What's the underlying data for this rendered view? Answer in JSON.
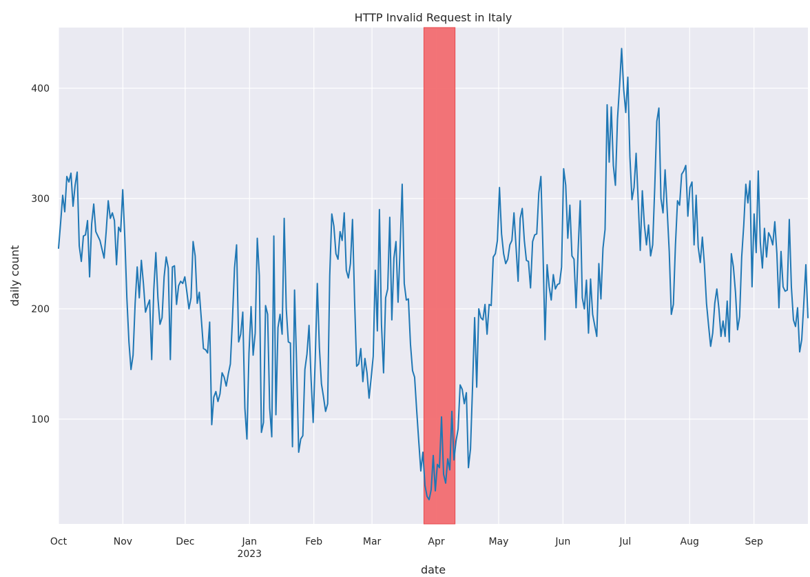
{
  "chart_data": {
    "type": "line",
    "title": "HTTP Invalid Request in Italy",
    "xlabel": "date",
    "ylabel": "daily count",
    "start_date": "2022-10-01",
    "end_date": "2023-09-27",
    "ylim": [
      5,
      455
    ],
    "y_ticks": [
      100,
      200,
      300,
      400
    ],
    "x_ticks": [
      {
        "date": "2022-10-01",
        "label": "Oct",
        "sublabel": ""
      },
      {
        "date": "2022-11-01",
        "label": "Nov",
        "sublabel": ""
      },
      {
        "date": "2022-12-01",
        "label": "Dec",
        "sublabel": ""
      },
      {
        "date": "2023-01-01",
        "label": "Jan",
        "sublabel": "2023"
      },
      {
        "date": "2023-02-01",
        "label": "Feb",
        "sublabel": ""
      },
      {
        "date": "2023-03-01",
        "label": "Mar",
        "sublabel": ""
      },
      {
        "date": "2023-04-01",
        "label": "Apr",
        "sublabel": ""
      },
      {
        "date": "2023-05-01",
        "label": "May",
        "sublabel": ""
      },
      {
        "date": "2023-06-01",
        "label": "Jun",
        "sublabel": ""
      },
      {
        "date": "2023-07-01",
        "label": "Jul",
        "sublabel": ""
      },
      {
        "date": "2023-08-01",
        "label": "Aug",
        "sublabel": ""
      },
      {
        "date": "2023-09-01",
        "label": "Sep",
        "sublabel": ""
      }
    ],
    "highlight": {
      "start": "2023-03-26",
      "end": "2023-04-10",
      "color": "#f26d70"
    },
    "series": [
      {
        "name": "daily count",
        "color": "#1f77b4",
        "values": [
          255,
          278,
          303,
          288,
          320,
          315,
          323,
          293,
          312,
          324,
          257,
          243,
          266,
          267,
          280,
          229,
          277,
          295,
          270,
          266,
          262,
          254,
          246,
          270,
          298,
          282,
          287,
          280,
          240,
          274,
          270,
          308,
          265,
          210,
          170,
          145,
          158,
          205,
          238,
          210,
          244,
          223,
          197,
          203,
          208,
          154,
          217,
          251,
          210,
          186,
          192,
          229,
          247,
          237,
          154,
          238,
          239,
          204,
          221,
          225,
          223,
          229,
          215,
          200,
          210,
          261,
          248,
          205,
          215,
          190,
          164,
          163,
          160,
          188,
          95,
          120,
          125,
          116,
          123,
          142,
          138,
          130,
          141,
          150,
          190,
          237,
          258,
          170,
          177,
          197,
          110,
          82,
          160,
          202,
          158,
          178,
          264,
          230,
          88,
          97,
          203,
          195,
          110,
          84,
          266,
          104,
          183,
          195,
          177,
          282,
          200,
          170,
          169,
          75,
          217,
          150,
          70,
          82,
          85,
          145,
          159,
          185,
          136,
          97,
          155,
          223,
          165,
          132,
          120,
          107,
          114,
          230,
          286,
          275,
          250,
          245,
          270,
          262,
          287,
          235,
          228,
          241,
          281,
          208,
          148,
          150,
          164,
          134,
          155,
          142,
          119,
          137,
          157,
          235,
          180,
          290,
          186,
          142,
          210,
          218,
          283,
          190,
          246,
          261,
          206,
          255,
          313,
          223,
          208,
          209,
          168,
          144,
          138,
          108,
          80,
          53,
          70,
          40,
          30,
          27,
          36,
          67,
          35,
          59,
          56,
          102,
          50,
          42,
          64,
          54,
          107,
          63,
          80,
          91,
          131,
          127,
          114,
          124,
          56,
          73,
          130,
          192,
          129,
          200,
          192,
          190,
          204,
          177,
          204,
          203,
          247,
          250,
          262,
          310,
          268,
          250,
          241,
          245,
          258,
          262,
          287,
          256,
          225,
          282,
          291,
          262,
          244,
          243,
          219,
          261,
          267,
          268,
          305,
          320,
          254,
          172,
          240,
          220,
          208,
          231,
          218,
          222,
          223,
          238,
          327,
          312,
          264,
          294,
          248,
          245,
          201,
          254,
          298,
          210,
          200,
          226,
          178,
          227,
          195,
          185,
          175,
          241,
          209,
          255,
          272,
          385,
          333,
          383,
          330,
          312,
          372,
          402,
          436,
          399,
          378,
          410,
          338,
          299,
          310,
          341,
          298,
          253,
          307,
          276,
          258,
          276,
          248,
          258,
          310,
          370,
          382,
          300,
          287,
          326,
          290,
          252,
          195,
          204,
          258,
          298,
          294,
          322,
          325,
          330,
          284,
          310,
          315,
          258,
          303,
          256,
          242,
          265,
          240,
          205,
          185,
          166,
          178,
          205,
          218,
          200,
          175,
          189,
          175,
          207,
          170,
          250,
          238,
          215,
          181,
          193,
          247,
          276,
          313,
          296,
          316,
          220,
          286,
          251,
          325,
          260,
          237,
          273,
          247,
          269,
          265,
          258,
          279,
          250,
          201,
          252,
          220,
          216,
          217,
          281,
          220,
          190,
          184,
          201,
          161,
          172,
          205,
          240,
          192
        ]
      }
    ]
  }
}
